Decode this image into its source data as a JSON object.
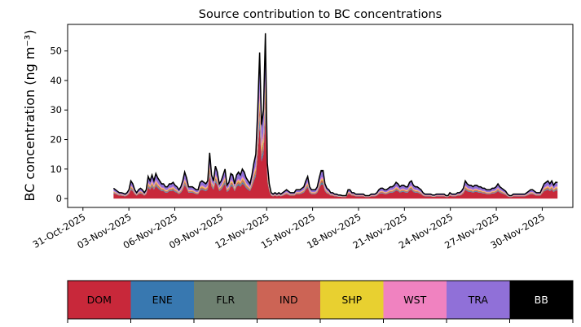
{
  "chart_data": {
    "type": "area",
    "stacked": true,
    "title": "Source contribution to BC concentrations",
    "ylabel": "BC concentration (ng m⁻³)",
    "xlabel": "",
    "x_start": "2025-11-02",
    "x_end": "2025-12-01",
    "xlim": [
      "2025-10-30",
      "2025-12-02"
    ],
    "ylim": [
      -3,
      59
    ],
    "yticks": [
      0,
      10,
      20,
      30,
      40,
      50
    ],
    "xticks": [
      "31-Oct-2025",
      "03-Nov-2025",
      "06-Nov-2025",
      "09-Nov-2025",
      "12-Nov-2025",
      "15-Nov-2025",
      "18-Nov-2025",
      "21-Nov-2025",
      "24-Nov-2025",
      "27-Nov-2025",
      "30-Nov-2025"
    ],
    "total_series": {
      "name": "Total",
      "values": [
        3.5,
        3,
        2.5,
        2,
        2,
        1.8,
        1.5,
        2,
        3,
        6,
        5,
        3,
        2,
        3,
        3.5,
        3,
        2,
        3,
        7.5,
        6,
        8,
        6,
        8.5,
        7,
        6,
        5,
        5,
        4,
        4,
        5,
        5,
        5.5,
        4.5,
        4,
        3,
        4,
        6,
        9,
        7,
        4,
        4,
        4,
        3.5,
        3,
        3,
        5.5,
        6,
        5.5,
        5,
        6,
        15.5,
        8,
        6,
        11,
        9,
        5,
        6,
        8,
        10,
        4.5,
        5.5,
        8.5,
        8,
        5,
        8,
        9,
        8,
        10,
        9,
        7,
        6,
        5,
        8,
        12,
        15,
        30,
        49.5,
        25,
        30,
        56,
        12,
        5,
        2,
        1.5,
        2,
        1.5,
        2,
        1.5,
        2,
        2.5,
        3,
        2.5,
        2,
        2,
        2,
        3,
        3,
        3,
        3.5,
        4,
        6,
        7.5,
        4,
        3,
        3,
        3,
        4,
        7,
        9.5,
        9.5,
        5,
        3.5,
        3,
        2,
        2,
        1.5,
        1.5,
        1.2,
        1.2,
        1,
        1,
        1,
        3,
        3,
        2,
        2,
        1.5,
        1.5,
        1.5,
        1.5,
        1.5,
        1,
        1,
        1,
        1.5,
        1.5,
        1.5,
        2,
        3,
        3.5,
        3.5,
        3,
        3,
        3.5,
        4,
        4,
        4.5,
        5.5,
        5,
        4,
        4.5,
        4.5,
        4,
        4,
        5.5,
        6,
        4.5,
        4,
        4,
        3.5,
        3,
        2,
        1.5,
        1.5,
        1.5,
        1.5,
        1.2,
        1.2,
        1.5,
        1.5,
        1.5,
        1.5,
        1.5,
        1,
        1,
        2,
        1.5,
        1.5,
        1.5,
        2,
        2,
        2.5,
        3.5,
        6,
        5,
        4.5,
        4.5,
        4,
        4.5,
        4.5,
        4,
        4,
        3.5,
        3.5,
        3,
        3,
        3,
        3.5,
        3.5,
        4,
        5,
        4,
        3.5,
        3,
        2.5,
        1.5,
        1,
        1,
        1.5,
        1.5,
        1.5,
        1.5,
        1.5,
        1.5,
        1.5,
        2,
        2.5,
        3,
        3,
        2.5,
        2,
        2,
        2,
        3.5,
        5,
        5.5,
        6,
        5,
        6,
        4.5,
        5.5,
        5.5
      ]
    },
    "shares": {
      "DOM": 0.5,
      "ENE": 0.04,
      "FLR": 0.03,
      "IND": 0.07,
      "SHP": 0.05,
      "WST": 0.06,
      "TRA": 0.2,
      "BB": 0.05
    },
    "series": [
      {
        "name": "DOM",
        "color": "#c8283a"
      },
      {
        "name": "ENE",
        "color": "#3878b0"
      },
      {
        "name": "FLR",
        "color": "#6e8070"
      },
      {
        "name": "IND",
        "color": "#cc6455"
      },
      {
        "name": "SHP",
        "color": "#e8d030"
      },
      {
        "name": "WST",
        "color": "#f082c0"
      },
      {
        "name": "TRA",
        "color": "#9070d8"
      },
      {
        "name": "BB",
        "color": "#000000"
      }
    ],
    "legend_position": "bottom"
  }
}
